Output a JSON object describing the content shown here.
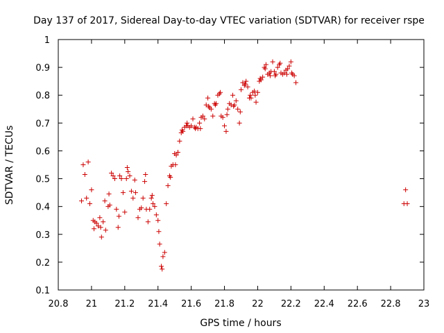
{
  "chart_data": {
    "type": "scatter",
    "title": "Day 137 of 2017, Sidereal Day-to-day VTEC variation (SDTVAR) for receiver rspe",
    "xlabel": "GPS time / hours",
    "ylabel": "SDTVAR / TECUs",
    "xlim": [
      20.8,
      23.0
    ],
    "ylim": [
      0.1,
      1.0
    ],
    "xticks": [
      "20.8",
      "21",
      "21.2",
      "21.4",
      "21.6",
      "21.8",
      "22",
      "22.2",
      "22.4",
      "22.6",
      "22.8",
      "23"
    ],
    "yticks": [
      "0.1",
      "0.2",
      "0.3",
      "0.4",
      "0.5",
      "0.6",
      "0.7",
      "0.8",
      "0.9",
      "1"
    ],
    "grid": false,
    "marker": "+",
    "color": "#cc0000",
    "series": [
      {
        "name": "SDTVAR",
        "points": [
          [
            20.94,
            0.42
          ],
          [
            20.95,
            0.55
          ],
          [
            20.96,
            0.515
          ],
          [
            20.97,
            0.43
          ],
          [
            20.98,
            0.56
          ],
          [
            20.99,
            0.41
          ],
          [
            21.0,
            0.46
          ],
          [
            21.01,
            0.35
          ],
          [
            21.015,
            0.32
          ],
          [
            21.02,
            0.345
          ],
          [
            21.03,
            0.34
          ],
          [
            21.04,
            0.33
          ],
          [
            21.05,
            0.36
          ],
          [
            21.055,
            0.325
          ],
          [
            21.06,
            0.29
          ],
          [
            21.07,
            0.345
          ],
          [
            21.08,
            0.42
          ],
          [
            21.085,
            0.315
          ],
          [
            21.1,
            0.4
          ],
          [
            21.105,
            0.445
          ],
          [
            21.11,
            0.405
          ],
          [
            21.12,
            0.52
          ],
          [
            21.13,
            0.51
          ],
          [
            21.14,
            0.5
          ],
          [
            21.15,
            0.39
          ],
          [
            21.16,
            0.325
          ],
          [
            21.165,
            0.365
          ],
          [
            21.17,
            0.51
          ],
          [
            21.18,
            0.5
          ],
          [
            21.19,
            0.45
          ],
          [
            21.2,
            0.38
          ],
          [
            21.21,
            0.5
          ],
          [
            21.215,
            0.54
          ],
          [
            21.22,
            0.525
          ],
          [
            21.23,
            0.51
          ],
          [
            21.24,
            0.455
          ],
          [
            21.25,
            0.43
          ],
          [
            21.26,
            0.495
          ],
          [
            21.265,
            0.45
          ],
          [
            21.28,
            0.36
          ],
          [
            21.29,
            0.39
          ],
          [
            21.3,
            0.395
          ],
          [
            21.31,
            0.43
          ],
          [
            21.32,
            0.49
          ],
          [
            21.325,
            0.515
          ],
          [
            21.33,
            0.39
          ],
          [
            21.34,
            0.345
          ],
          [
            21.35,
            0.39
          ],
          [
            21.36,
            0.43
          ],
          [
            21.365,
            0.44
          ],
          [
            21.37,
            0.41
          ],
          [
            21.38,
            0.4
          ],
          [
            21.39,
            0.37
          ],
          [
            21.4,
            0.35
          ],
          [
            21.405,
            0.31
          ],
          [
            21.41,
            0.265
          ],
          [
            21.42,
            0.185
          ],
          [
            21.425,
            0.175
          ],
          [
            21.43,
            0.22
          ],
          [
            21.44,
            0.235
          ],
          [
            21.45,
            0.41
          ],
          [
            21.46,
            0.475
          ],
          [
            21.47,
            0.51
          ],
          [
            21.475,
            0.505
          ],
          [
            21.48,
            0.545
          ],
          [
            21.49,
            0.55
          ],
          [
            21.5,
            0.59
          ],
          [
            21.505,
            0.55
          ],
          [
            21.51,
            0.585
          ],
          [
            21.52,
            0.595
          ],
          [
            21.53,
            0.635
          ],
          [
            21.54,
            0.665
          ],
          [
            21.545,
            0.675
          ],
          [
            21.55,
            0.67
          ],
          [
            21.56,
            0.685
          ],
          [
            21.57,
            0.69
          ],
          [
            21.575,
            0.7
          ],
          [
            21.58,
            0.69
          ],
          [
            21.59,
            0.685
          ],
          [
            21.6,
            0.69
          ],
          [
            21.61,
            0.715
          ],
          [
            21.62,
            0.685
          ],
          [
            21.625,
            0.68
          ],
          [
            21.63,
            0.685
          ],
          [
            21.64,
            0.68
          ],
          [
            21.65,
            0.7
          ],
          [
            21.655,
            0.68
          ],
          [
            21.66,
            0.72
          ],
          [
            21.67,
            0.725
          ],
          [
            21.68,
            0.715
          ],
          [
            21.69,
            0.765
          ],
          [
            21.7,
            0.79
          ],
          [
            21.705,
            0.76
          ],
          [
            21.71,
            0.755
          ],
          [
            21.72,
            0.75
          ],
          [
            21.73,
            0.725
          ],
          [
            21.74,
            0.77
          ],
          [
            21.745,
            0.765
          ],
          [
            21.75,
            0.77
          ],
          [
            21.76,
            0.8
          ],
          [
            21.77,
            0.805
          ],
          [
            21.775,
            0.81
          ],
          [
            21.78,
            0.725
          ],
          [
            21.79,
            0.72
          ],
          [
            21.8,
            0.69
          ],
          [
            21.81,
            0.67
          ],
          [
            21.815,
            0.73
          ],
          [
            21.82,
            0.75
          ],
          [
            21.83,
            0.77
          ],
          [
            21.84,
            0.765
          ],
          [
            21.85,
            0.8
          ],
          [
            21.855,
            0.76
          ],
          [
            21.86,
            0.765
          ],
          [
            21.87,
            0.78
          ],
          [
            21.88,
            0.75
          ],
          [
            21.89,
            0.7
          ],
          [
            21.895,
            0.74
          ],
          [
            21.9,
            0.82
          ],
          [
            21.91,
            0.845
          ],
          [
            21.92,
            0.835
          ],
          [
            21.925,
            0.84
          ],
          [
            21.93,
            0.85
          ],
          [
            21.94,
            0.83
          ],
          [
            21.95,
            0.79
          ],
          [
            21.955,
            0.8
          ],
          [
            21.96,
            0.79
          ],
          [
            21.97,
            0.81
          ],
          [
            21.98,
            0.815
          ],
          [
            21.985,
            0.8
          ],
          [
            21.99,
            0.775
          ],
          [
            22.0,
            0.81
          ],
          [
            22.01,
            0.85
          ],
          [
            22.015,
            0.86
          ],
          [
            22.02,
            0.855
          ],
          [
            22.03,
            0.865
          ],
          [
            22.04,
            0.9
          ],
          [
            22.045,
            0.895
          ],
          [
            22.05,
            0.91
          ],
          [
            22.06,
            0.875
          ],
          [
            22.07,
            0.88
          ],
          [
            22.075,
            0.87
          ],
          [
            22.08,
            0.885
          ],
          [
            22.09,
            0.92
          ],
          [
            22.1,
            0.885
          ],
          [
            22.105,
            0.87
          ],
          [
            22.11,
            0.875
          ],
          [
            22.12,
            0.9
          ],
          [
            22.13,
            0.91
          ],
          [
            22.135,
            0.915
          ],
          [
            22.14,
            0.88
          ],
          [
            22.15,
            0.875
          ],
          [
            22.16,
            0.88
          ],
          [
            22.17,
            0.89
          ],
          [
            22.175,
            0.875
          ],
          [
            22.18,
            0.895
          ],
          [
            22.19,
            0.905
          ],
          [
            22.2,
            0.92
          ],
          [
            22.205,
            0.88
          ],
          [
            22.21,
            0.875
          ],
          [
            22.22,
            0.87
          ],
          [
            22.23,
            0.845
          ],
          [
            22.88,
            0.41
          ],
          [
            22.89,
            0.46
          ],
          [
            22.9,
            0.41
          ]
        ]
      }
    ]
  }
}
